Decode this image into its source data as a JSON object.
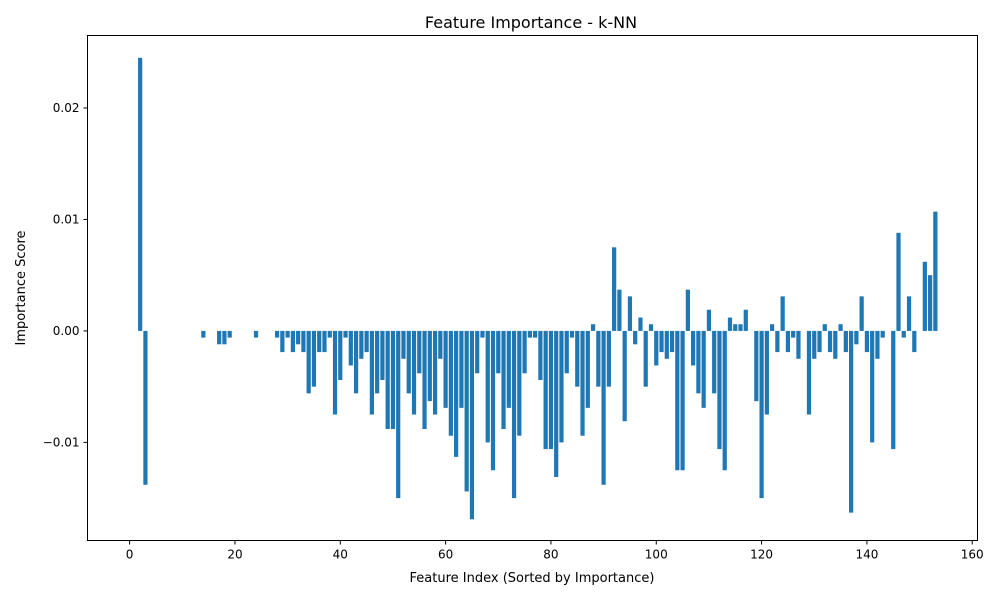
{
  "colors": {
    "bar": "#1f77b4",
    "axis": "#000000",
    "background": "#ffffff"
  },
  "chart_data": {
    "type": "bar",
    "title": "Feature Importance - k-NN",
    "xlabel": "Feature Index (Sorted by Importance)",
    "ylabel": "Importance Score",
    "xlim": [
      -8,
      161
    ],
    "ylim": [
      -0.0188,
      0.0265
    ],
    "grid": false,
    "legend": "none",
    "x_ticks": [
      0,
      20,
      40,
      60,
      80,
      100,
      120,
      140,
      160
    ],
    "x_tick_labels": [
      "0",
      "20",
      "40",
      "60",
      "80",
      "100",
      "120",
      "140",
      "160"
    ],
    "y_ticks": [
      -0.01,
      0.0,
      0.01,
      0.02
    ],
    "y_tick_labels": [
      "−0.01",
      "0.00",
      "0.01",
      "0.02"
    ],
    "x": [
      0,
      1,
      2,
      3,
      4,
      5,
      6,
      7,
      8,
      9,
      10,
      11,
      12,
      13,
      14,
      15,
      16,
      17,
      18,
      19,
      20,
      21,
      22,
      23,
      24,
      25,
      26,
      27,
      28,
      29,
      30,
      31,
      32,
      33,
      34,
      35,
      36,
      37,
      38,
      39,
      40,
      41,
      42,
      43,
      44,
      45,
      46,
      47,
      48,
      49,
      50,
      51,
      52,
      53,
      54,
      55,
      56,
      57,
      58,
      59,
      60,
      61,
      62,
      63,
      64,
      65,
      66,
      67,
      68,
      69,
      70,
      71,
      72,
      73,
      74,
      75,
      76,
      77,
      78,
      79,
      80,
      81,
      82,
      83,
      84,
      85,
      86,
      87,
      88,
      89,
      90,
      91,
      92,
      93,
      94,
      95,
      96,
      97,
      98,
      99,
      100,
      101,
      102,
      103,
      104,
      105,
      106,
      107,
      108,
      109,
      110,
      111,
      112,
      113,
      114,
      115,
      116,
      117,
      118,
      119,
      120,
      121,
      122,
      123,
      124,
      125,
      126,
      127,
      128,
      129,
      130,
      131,
      132,
      133,
      134,
      135,
      136,
      137,
      138,
      139,
      140,
      141,
      142,
      143,
      144,
      145,
      146,
      147,
      148,
      149,
      150,
      151,
      152,
      153
    ],
    "values": [
      0,
      0,
      0.0245,
      -0.0138,
      0,
      0,
      0,
      0,
      0,
      0,
      0,
      0,
      0,
      0,
      -0.0006,
      0,
      0,
      -0.0012,
      -0.0012,
      -0.0006,
      0,
      0,
      0,
      0,
      -0.0006,
      0,
      0,
      0,
      -0.0006,
      -0.0019,
      -0.0006,
      -0.0019,
      -0.0012,
      -0.0019,
      -0.0056,
      -0.005,
      -0.0019,
      -0.0019,
      -0.0006,
      -0.0075,
      -0.0044,
      -0.0006,
      -0.0031,
      -0.0056,
      -0.0025,
      -0.0019,
      -0.0075,
      -0.0056,
      -0.0044,
      -0.0088,
      -0.0088,
      -0.015,
      -0.0025,
      -0.0056,
      -0.0075,
      -0.0038,
      -0.0088,
      -0.0063,
      -0.0075,
      -0.0025,
      -0.0069,
      -0.0094,
      -0.0113,
      -0.0069,
      -0.0144,
      -0.0169,
      -0.0038,
      -0.0006,
      -0.01,
      -0.0125,
      -0.0038,
      -0.0088,
      -0.0069,
      -0.015,
      -0.0094,
      -0.0038,
      -0.0006,
      -0.0006,
      -0.0044,
      -0.0106,
      -0.0106,
      -0.0131,
      -0.01,
      -0.0038,
      -0.0006,
      -0.005,
      -0.0094,
      -0.0069,
      0.0006,
      -0.005,
      -0.0138,
      -0.005,
      0.0075,
      0.0037,
      -0.0081,
      0.0031,
      -0.0012,
      0.0012,
      -0.005,
      0.0006,
      -0.0031,
      -0.0019,
      -0.0025,
      -0.0019,
      -0.0125,
      -0.0125,
      0.0037,
      -0.0031,
      -0.0056,
      -0.0069,
      0.0019,
      -0.0056,
      -0.0106,
      -0.0125,
      0.0012,
      0.0006,
      0.0006,
      0.0019,
      0,
      -0.0063,
      -0.015,
      -0.0075,
      0.0006,
      -0.0019,
      0.0031,
      -0.0019,
      -0.0006,
      -0.0025,
      0,
      -0.0075,
      -0.0025,
      -0.0019,
      0.0006,
      -0.0019,
      -0.0025,
      0.0006,
      -0.0019,
      -0.0163,
      -0.0012,
      0.0031,
      -0.0019,
      -0.01,
      -0.0025,
      -0.0006,
      0,
      -0.0106,
      0.0088,
      -0.0006,
      0.0031,
      -0.0019,
      0,
      0.0062,
      0.005,
      0.0107
    ]
  }
}
